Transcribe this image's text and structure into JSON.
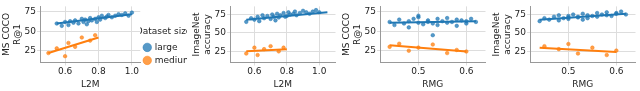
{
  "chart_data": [
    {
      "type": "scatter",
      "xlabel": "L2M",
      "ylabel": "MS COCO R@1",
      "xlim": [
        0.45,
        1.05
      ],
      "ylim": [
        10,
        82
      ],
      "xticks": [
        0.6,
        0.8,
        {
          "value": 1.0,
          "label": "1.0"
        }
      ],
      "yticks": [
        25,
        50,
        75
      ],
      "grid": true,
      "legend": "right",
      "legend_title": "Dataset size",
      "series": [
        {
          "name": "large",
          "color": "#1f77b4",
          "x": [
            0.55,
            0.58,
            0.6,
            0.62,
            0.63,
            0.65,
            0.66,
            0.68,
            0.7,
            0.71,
            0.72,
            0.74,
            0.75,
            0.76,
            0.78,
            0.8,
            0.81,
            0.82,
            0.84,
            0.85,
            0.86,
            0.88,
            0.9,
            0.92,
            0.94,
            0.96,
            0.98,
            1.0,
            0.73,
            0.79
          ],
          "values": [
            60,
            57,
            62,
            58,
            63,
            61,
            64,
            60,
            66,
            62,
            65,
            63,
            67,
            64,
            66,
            68,
            65,
            70,
            67,
            69,
            71,
            68,
            70,
            72,
            71,
            73,
            70,
            74,
            59,
            62
          ],
          "fit": {
            "x": [
              0.55,
              1.0
            ],
            "values": [
              60,
              72
            ]
          }
        },
        {
          "name": "medium",
          "color": "#ff7f0e",
          "x": [
            0.5,
            0.55,
            0.6,
            0.62,
            0.66,
            0.7,
            0.75,
            0.78
          ],
          "values": [
            22,
            28,
            18,
            35,
            30,
            42,
            38,
            45
          ],
          "fit": {
            "x": [
              0.5,
              0.8
            ],
            "values": [
              22,
              42
            ]
          }
        }
      ]
    },
    {
      "type": "scatter",
      "xlabel": "L2M",
      "ylabel": "ImageNet accuracy",
      "xlim": [
        0.45,
        1.1
      ],
      "ylim": [
        10,
        86
      ],
      "xticks": [
        0.6,
        0.8,
        {
          "value": 1.0,
          "label": "1.0"
        }
      ],
      "yticks": [
        25,
        50,
        75
      ],
      "grid": true,
      "series": [
        {
          "name": "large",
          "color": "#1f77b4",
          "x": [
            0.55,
            0.58,
            0.6,
            0.62,
            0.63,
            0.65,
            0.66,
            0.68,
            0.7,
            0.71,
            0.72,
            0.74,
            0.75,
            0.76,
            0.78,
            0.8,
            0.81,
            0.82,
            0.84,
            0.85,
            0.86,
            0.88,
            0.9,
            0.92,
            0.94,
            0.96,
            0.98,
            1.0,
            0.73,
            0.79
          ],
          "values": [
            65,
            70,
            68,
            72,
            66,
            74,
            70,
            73,
            69,
            75,
            72,
            76,
            71,
            74,
            77,
            73,
            78,
            75,
            76,
            79,
            74,
            77,
            80,
            78,
            76,
            79,
            81,
            78,
            67,
            72
          ],
          "fit": {
            "x": [
              0.55,
              1.05
            ],
            "values": [
              68,
              78
            ]
          }
        },
        {
          "name": "medium",
          "color": "#ff7f0e",
          "x": [
            0.55,
            0.6,
            0.62,
            0.66,
            0.7,
            0.75,
            0.78
          ],
          "values": [
            22,
            30,
            20,
            28,
            32,
            25,
            30
          ],
          "fit": {
            "x": [
              0.55,
              0.8
            ],
            "values": [
              25,
              28
            ]
          }
        }
      ]
    },
    {
      "type": "scatter",
      "xlabel": "RMG",
      "ylabel": "MS COCO R@1",
      "xlim": [
        0.42,
        0.64
      ],
      "ylim": [
        10,
        82
      ],
      "xticks": [
        0.5,
        0.6
      ],
      "yticks": [
        25,
        50,
        75
      ],
      "grid": true,
      "series": [
        {
          "name": "large",
          "color": "#1f77b4",
          "x": [
            0.44,
            0.45,
            0.46,
            0.47,
            0.48,
            0.48,
            0.49,
            0.5,
            0.5,
            0.51,
            0.52,
            0.52,
            0.53,
            0.54,
            0.54,
            0.55,
            0.56,
            0.56,
            0.57,
            0.58,
            0.58,
            0.59,
            0.6,
            0.6,
            0.61,
            0.62,
            0.53,
            0.5
          ],
          "values": [
            62,
            58,
            65,
            60,
            63,
            55,
            66,
            61,
            68,
            59,
            64,
            62,
            60,
            66,
            58,
            63,
            61,
            67,
            62,
            65,
            57,
            64,
            60,
            63,
            66,
            62,
            45,
            70
          ],
          "fit": {
            "x": [
              0.44,
              0.62
            ],
            "values": [
              61,
              63
            ]
          }
        },
        {
          "name": "medium",
          "color": "#ff7f0e",
          "x": [
            0.44,
            0.46,
            0.48,
            0.5,
            0.53,
            0.56,
            0.58,
            0.6
          ],
          "values": [
            30,
            34,
            25,
            29,
            33,
            22,
            26,
            24
          ],
          "fit": {
            "x": [
              0.44,
              0.6
            ],
            "values": [
              32,
              24
            ]
          }
        }
      ]
    },
    {
      "type": "scatter",
      "xlabel": "RMG",
      "ylabel": "ImageNet accuracy",
      "xlim": [
        0.42,
        0.64
      ],
      "ylim": [
        10,
        86
      ],
      "xticks": [
        0.5,
        0.6
      ],
      "yticks": [
        25,
        50,
        75
      ],
      "grid": true,
      "series": [
        {
          "name": "large",
          "color": "#1f77b4",
          "x": [
            0.44,
            0.45,
            0.46,
            0.47,
            0.48,
            0.48,
            0.49,
            0.5,
            0.5,
            0.51,
            0.52,
            0.52,
            0.53,
            0.54,
            0.54,
            0.55,
            0.56,
            0.56,
            0.57,
            0.58,
            0.58,
            0.59,
            0.6,
            0.6,
            0.61,
            0.62,
            0.53,
            0.5
          ],
          "values": [
            66,
            70,
            68,
            72,
            67,
            74,
            70,
            73,
            69,
            75,
            72,
            71,
            76,
            70,
            74,
            73,
            77,
            72,
            75,
            74,
            78,
            73,
            76,
            77,
            79,
            75,
            68,
            71
          ],
          "fit": {
            "x": [
              0.44,
              0.62
            ],
            "values": [
              68,
              76
            ]
          }
        },
        {
          "name": "medium",
          "color": "#ff7f0e",
          "x": [
            0.45,
            0.48,
            0.5,
            0.52,
            0.55,
            0.58,
            0.6
          ],
          "values": [
            32,
            28,
            35,
            22,
            30,
            20,
            26
          ],
          "fit": {
            "x": [
              0.44,
              0.6
            ],
            "values": [
              30,
              24
            ]
          }
        }
      ]
    }
  ]
}
